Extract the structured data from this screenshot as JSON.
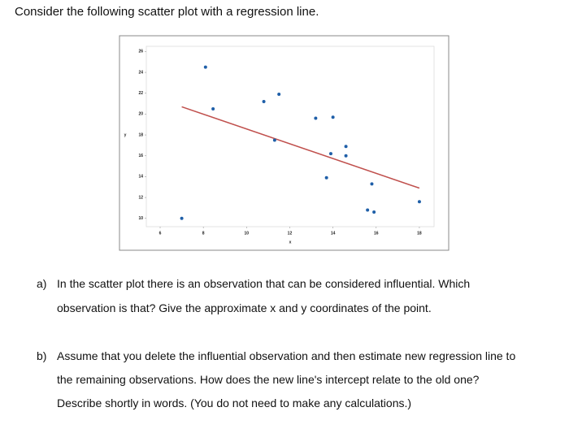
{
  "intro": "Consider the following scatter plot with a regression line.",
  "chart_data": {
    "type": "scatter",
    "xlabel": "x",
    "ylabel": "y",
    "x": [
      7,
      8.1,
      8.45,
      10.8,
      11.5,
      11.3,
      13.2,
      14.0,
      13.9,
      14.6,
      14.6,
      13.7,
      15.8,
      15.6,
      15.9,
      18.0
    ],
    "series": [
      {
        "color": "#1f5fa8",
        "values": [
          10,
          24.5,
          20.5,
          21.2,
          21.9,
          17.5,
          19.6,
          19.7,
          16.2,
          16.9,
          16.0,
          13.9,
          13.3,
          10.8,
          10.6,
          11.6
        ]
      }
    ],
    "regression_line": {
      "color": "#c0504d",
      "x": [
        7,
        18
      ],
      "y": [
        20.7,
        12.9
      ]
    },
    "xlim": [
      5.36,
      18.68
    ],
    "ylim": [
      9.2,
      26.5
    ],
    "xticks": [
      6,
      8,
      10,
      12,
      14,
      16,
      18
    ],
    "yticks": [
      10,
      12,
      14,
      16,
      18,
      20,
      22,
      24,
      26
    ]
  },
  "questions": [
    {
      "label": "a)",
      "lines": [
        "In the scatter plot there is an observation that can be considered influential. Which",
        "observation is that? Give the approximate x and y coordinates of the point."
      ]
    },
    {
      "label": "b)",
      "lines": [
        "Assume that you delete the influential observation and then estimate new regression line to",
        "the remaining observations. How does the new line's intercept relate to the old one?",
        "Describe shortly in words. (You do not need to make any calculations.)"
      ]
    }
  ]
}
